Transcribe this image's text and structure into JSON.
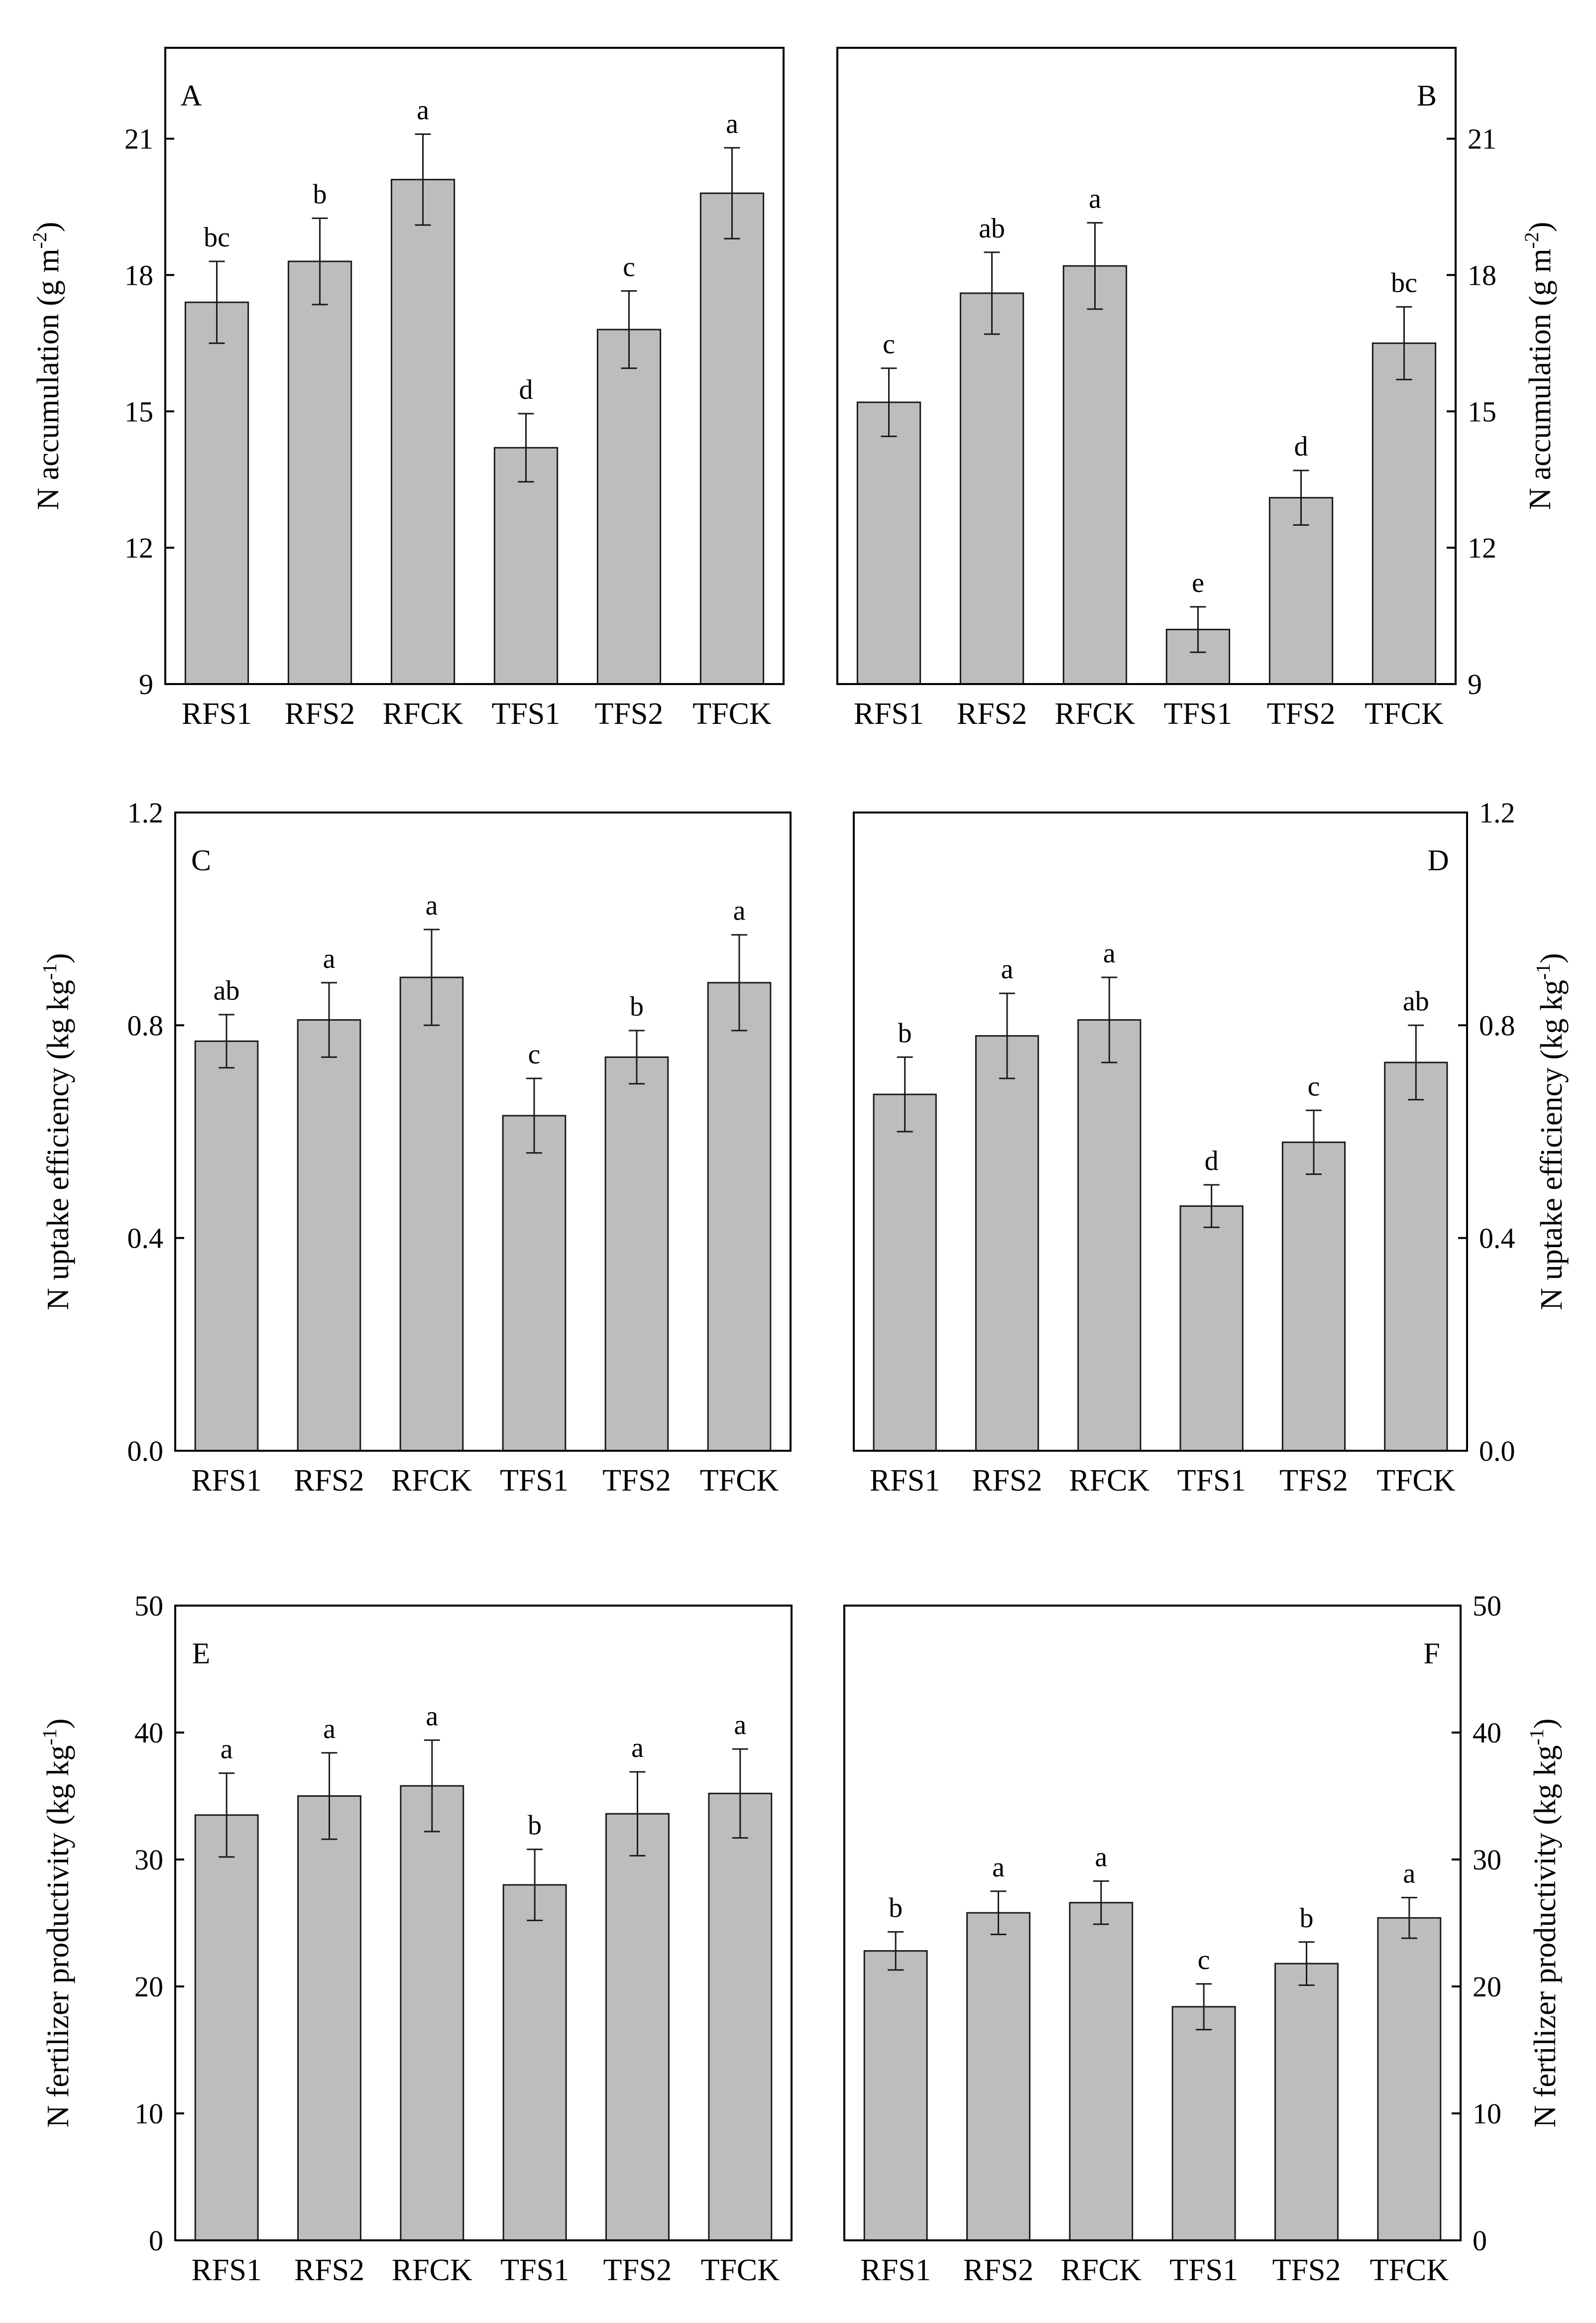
{
  "chart_data": [
    {
      "panel": "A",
      "type": "bar",
      "axis_side": "left",
      "ylabel": "N accumulation (g m",
      "ylabel_sup": "-2",
      "ylabel_end": ")",
      "ylim": [
        9,
        23
      ],
      "yticks": [
        9,
        12,
        15,
        18,
        21
      ],
      "tick_decimals": 0,
      "categories": [
        "RFS1",
        "RFS2",
        "RFCK",
        "TFS1",
        "TFS2",
        "TFCK"
      ],
      "values": [
        17.4,
        18.3,
        20.1,
        14.2,
        16.8,
        19.8
      ],
      "errors": [
        0.9,
        0.95,
        1.0,
        0.75,
        0.85,
        1.0
      ],
      "letters": [
        "bc",
        "b",
        "a",
        "d",
        "c",
        "a"
      ]
    },
    {
      "panel": "B",
      "type": "bar",
      "axis_side": "right",
      "ylabel": "N accumulation (g m",
      "ylabel_sup": "-2",
      "ylabel_end": ")",
      "ylim": [
        9,
        23
      ],
      "yticks": [
        9,
        12,
        15,
        18,
        21
      ],
      "tick_decimals": 0,
      "categories": [
        "RFS1",
        "RFS2",
        "RFCK",
        "TFS1",
        "TFS2",
        "TFCK"
      ],
      "values": [
        15.2,
        17.6,
        18.2,
        10.2,
        13.1,
        16.5
      ],
      "errors": [
        0.75,
        0.9,
        0.95,
        0.5,
        0.6,
        0.8
      ],
      "letters": [
        "c",
        "ab",
        "a",
        "e",
        "d",
        "bc"
      ]
    },
    {
      "panel": "C",
      "type": "bar",
      "axis_side": "left",
      "ylabel": "N uptake efficiency (kg kg",
      "ylabel_sup": "-1",
      "ylabel_end": ")",
      "ylim": [
        0.0,
        1.2
      ],
      "yticks": [
        0.0,
        0.4,
        0.8,
        1.2
      ],
      "tick_decimals": 1,
      "categories": [
        "RFS1",
        "RFS2",
        "RFCK",
        "TFS1",
        "TFS2",
        "TFCK"
      ],
      "values": [
        0.77,
        0.81,
        0.89,
        0.63,
        0.74,
        0.88
      ],
      "errors": [
        0.05,
        0.07,
        0.09,
        0.07,
        0.05,
        0.09
      ],
      "letters": [
        "ab",
        "a",
        "a",
        "c",
        "b",
        "a"
      ]
    },
    {
      "panel": "D",
      "type": "bar",
      "axis_side": "right",
      "ylabel": "N uptake efficiency (kg kg",
      "ylabel_sup": "-1",
      "ylabel_end": ")",
      "ylim": [
        0.0,
        1.2
      ],
      "yticks": [
        0.0,
        0.4,
        0.8,
        1.2
      ],
      "tick_decimals": 1,
      "categories": [
        "RFS1",
        "RFS2",
        "RFCK",
        "TFS1",
        "TFS2",
        "TFCK"
      ],
      "values": [
        0.67,
        0.78,
        0.81,
        0.46,
        0.58,
        0.73
      ],
      "errors": [
        0.07,
        0.08,
        0.08,
        0.04,
        0.06,
        0.07
      ],
      "letters": [
        "b",
        "a",
        "a",
        "d",
        "c",
        "ab"
      ]
    },
    {
      "panel": "E",
      "type": "bar",
      "axis_side": "left",
      "ylabel": "N fertilizer productivity  (kg kg",
      "ylabel_sup": "-1",
      "ylabel_end": ")",
      "ylim": [
        0,
        50
      ],
      "yticks": [
        0,
        10,
        20,
        30,
        40,
        50
      ],
      "tick_decimals": 0,
      "categories": [
        "RFS1",
        "RFS2",
        "RFCK",
        "TFS1",
        "TFS2",
        "TFCK"
      ],
      "values": [
        33.5,
        35.0,
        35.8,
        28.0,
        33.6,
        35.2
      ],
      "errors": [
        3.3,
        3.4,
        3.6,
        2.8,
        3.3,
        3.5
      ],
      "letters": [
        "a",
        "a",
        "a",
        "b",
        "a",
        "a"
      ]
    },
    {
      "panel": "F",
      "type": "bar",
      "axis_side": "right",
      "ylabel": "N fertilizer productivity  (kg kg",
      "ylabel_sup": "-1",
      "ylabel_end": ")",
      "ylim": [
        0,
        50
      ],
      "yticks": [
        0,
        10,
        20,
        30,
        40,
        50
      ],
      "tick_decimals": 0,
      "categories": [
        "RFS1",
        "RFS2",
        "RFCK",
        "TFS1",
        "TFS2",
        "TFCK"
      ],
      "values": [
        22.8,
        25.8,
        26.6,
        18.4,
        21.8,
        25.4
      ],
      "errors": [
        1.5,
        1.7,
        1.7,
        1.8,
        1.7,
        1.6
      ],
      "letters": [
        "b",
        "a",
        "a",
        "c",
        "b",
        "a"
      ]
    }
  ]
}
